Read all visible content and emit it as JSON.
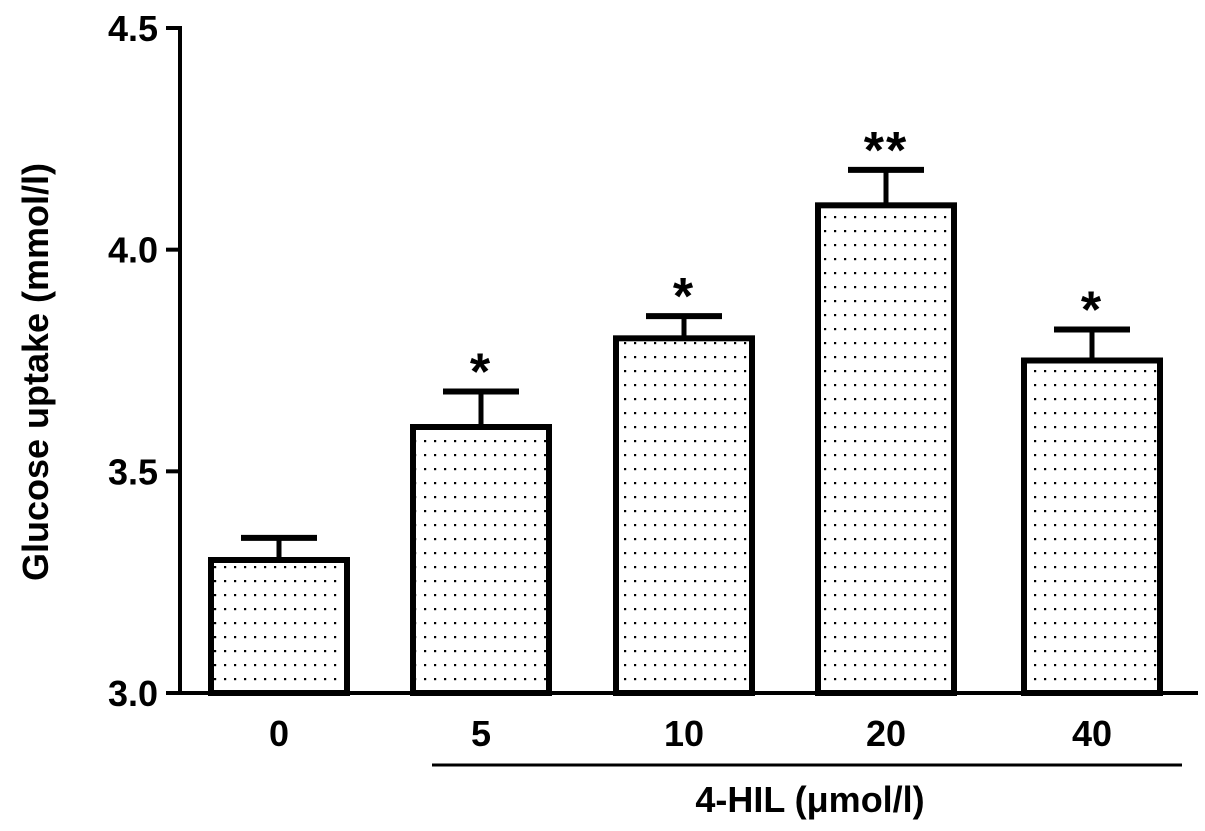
{
  "chart_data": {
    "type": "bar",
    "title": "",
    "ylabel": "Glucose uptake (mmol/l)",
    "xlabel": "4-HIL (μmol/l)",
    "categories": [
      "0",
      "5",
      "10",
      "20",
      "40"
    ],
    "values": [
      3.3,
      3.6,
      3.8,
      4.1,
      3.75
    ],
    "error_upper": [
      0.05,
      0.08,
      0.05,
      0.08,
      0.07
    ],
    "significance": [
      "",
      "*",
      "*",
      "**",
      "*"
    ],
    "ylim": [
      3.0,
      4.5
    ],
    "yticks": [
      "3.0",
      "3.5",
      "4.0",
      "4.5"
    ],
    "ytick_values": [
      3.0,
      3.5,
      4.0,
      4.5
    ],
    "bar_fill": "dotted",
    "grid": false,
    "legend": "none",
    "colors": {
      "stroke": "#000000",
      "fill": "#ffffff",
      "dot": "#000000"
    }
  }
}
